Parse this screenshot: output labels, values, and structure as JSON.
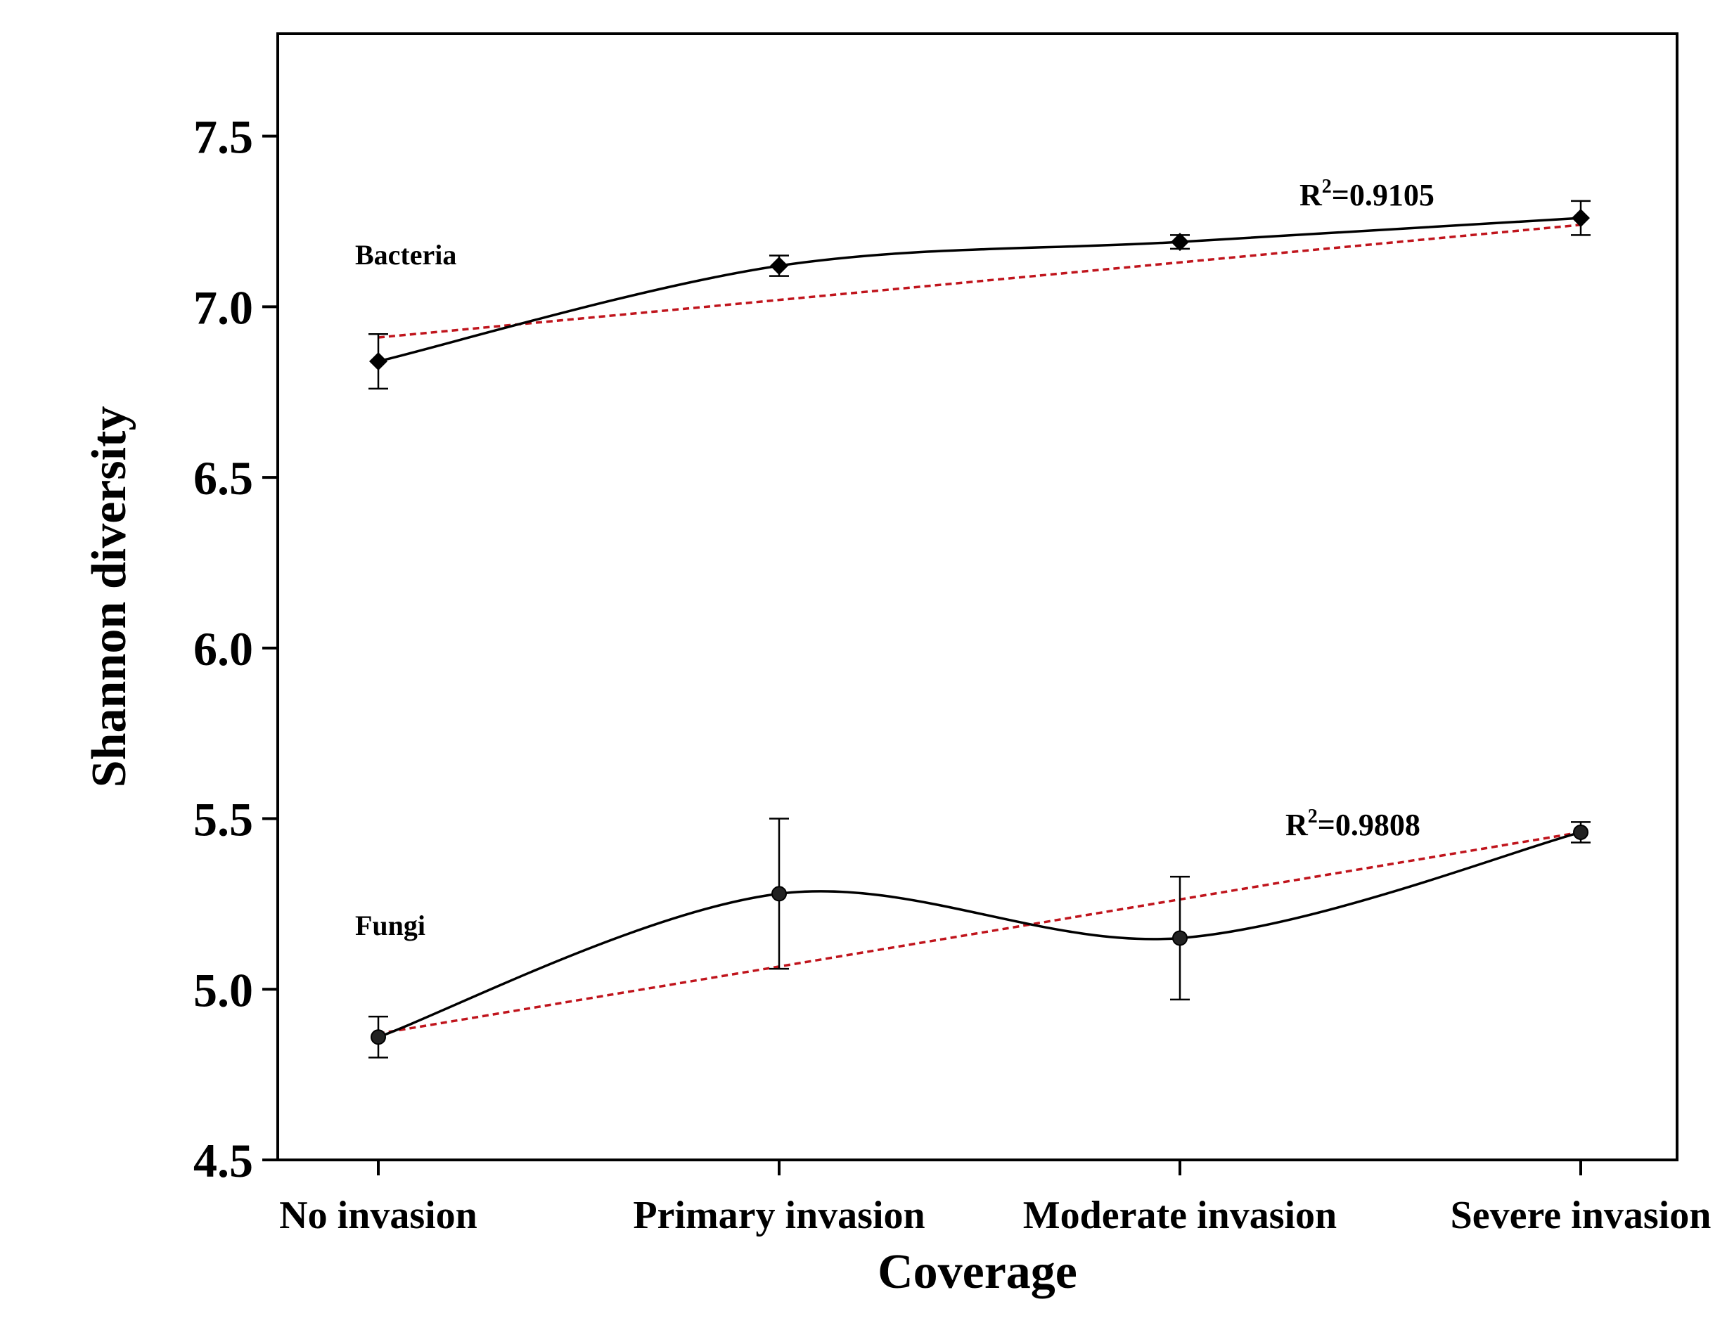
{
  "chart_data": {
    "type": "line",
    "xlabel": "Coverage",
    "ylabel": "Shannon diversity",
    "categories": [
      "No invasion",
      "Primary invasion",
      "Moderate invasion",
      "Severe invasion"
    ],
    "ylim": [
      4.5,
      7.8
    ],
    "yticks": [
      4.5,
      5.0,
      5.5,
      6.0,
      6.5,
      7.0,
      7.5
    ],
    "ytick_labels": [
      "4.5",
      "5.0",
      "5.5",
      "6.0",
      "6.5",
      "7.0",
      "7.5"
    ],
    "grid": false,
    "series": [
      {
        "name": "Bacteria",
        "marker": "diamond",
        "values": [
          6.84,
          7.12,
          7.19,
          7.26
        ],
        "errors": [
          0.08,
          0.03,
          0.02,
          0.05
        ],
        "trend": {
          "start": 6.91,
          "end": 7.24,
          "label_r2": "=0.9105",
          "label_r": "R",
          "label_sup": "2"
        }
      },
      {
        "name": "Fungi",
        "marker": "circle",
        "values": [
          4.86,
          5.28,
          5.15,
          5.46
        ],
        "errors": [
          0.06,
          0.22,
          0.18,
          0.03
        ],
        "trend": {
          "start": 4.87,
          "end": 5.46,
          "label_r2": "=0.9808",
          "label_r": "R",
          "label_sup": "2"
        }
      }
    ],
    "colors": {
      "line": "#000000",
      "trend": "#c0141c",
      "axis": "#000000"
    }
  }
}
